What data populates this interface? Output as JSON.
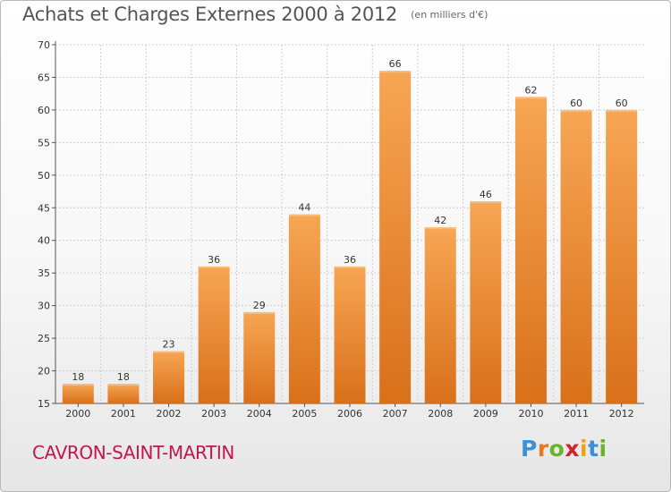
{
  "chart_data": {
    "type": "bar",
    "title": "Achats et Charges Externes 2000 à 2012",
    "subtitle": "(en milliers d'€)",
    "categories": [
      "2000",
      "2001",
      "2002",
      "2003",
      "2004",
      "2005",
      "2006",
      "2007",
      "2008",
      "2009",
      "2010",
      "2011",
      "2012"
    ],
    "values": [
      18,
      18,
      23,
      36,
      29,
      44,
      36,
      66,
      42,
      46,
      62,
      60,
      60
    ],
    "ylim": [
      15,
      70
    ],
    "yticks": [
      15,
      20,
      25,
      30,
      35,
      40,
      45,
      50,
      55,
      60,
      65,
      70
    ],
    "grid": true,
    "bar_color": "#f29a45",
    "bar_color_dark": "#d9701a"
  },
  "footer": {
    "commune": "CAVRON-SAINT-MARTIN",
    "logo": "Proxiti"
  },
  "colors": {
    "commune_text": "#c0174f",
    "grid": "#cfcfcf",
    "axis": "#555555"
  }
}
